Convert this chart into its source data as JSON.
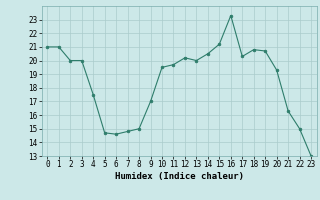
{
  "x": [
    0,
    1,
    2,
    3,
    4,
    5,
    6,
    7,
    8,
    9,
    10,
    11,
    12,
    13,
    14,
    15,
    16,
    17,
    18,
    19,
    20,
    21,
    22,
    23
  ],
  "y": [
    21,
    21,
    20,
    20,
    17.5,
    14.7,
    14.6,
    14.8,
    15.0,
    17.0,
    19.5,
    19.7,
    20.2,
    20.0,
    20.5,
    21.2,
    23.3,
    20.3,
    20.8,
    20.7,
    19.3,
    16.3,
    15.0,
    13.0
  ],
  "line_color": "#2e7d6b",
  "marker_color": "#2e7d6b",
  "bg_color": "#cce8e8",
  "grid_color": "#aacccc",
  "xlabel": "Humidex (Indice chaleur)",
  "ylim": [
    13,
    24
  ],
  "xlim": [
    -0.5,
    23.5
  ],
  "yticks": [
    13,
    14,
    15,
    16,
    17,
    18,
    19,
    20,
    21,
    22,
    23
  ],
  "xticks": [
    0,
    1,
    2,
    3,
    4,
    5,
    6,
    7,
    8,
    9,
    10,
    11,
    12,
    13,
    14,
    15,
    16,
    17,
    18,
    19,
    20,
    21,
    22,
    23
  ],
  "tick_fontsize": 5.5,
  "xlabel_fontsize": 6.5
}
